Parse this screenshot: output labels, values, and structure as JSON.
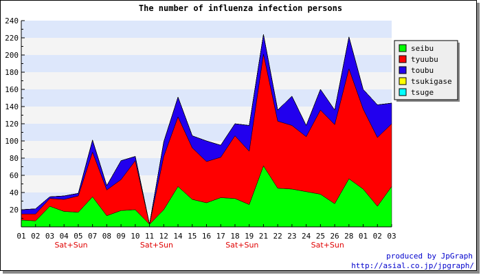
{
  "chart_data": {
    "type": "area",
    "stacked": true,
    "title": "The number of influenza infection persons",
    "xlabel": "",
    "ylabel": "",
    "ylim": [
      0,
      240
    ],
    "yticks": [
      0,
      20,
      40,
      60,
      80,
      100,
      120,
      140,
      160,
      180,
      200,
      220,
      240
    ],
    "ytick_labels": [
      "",
      "20",
      "40",
      "60",
      "80",
      "100",
      "120",
      "140",
      "160",
      "180",
      "200",
      "220",
      "240"
    ],
    "grid": "horizontal bands",
    "legend_position": "right",
    "categories": [
      "01",
      "02",
      "03",
      "04",
      "05",
      "07",
      "08",
      "09",
      "10",
      "11",
      "12",
      "14",
      "15",
      "16",
      "17",
      "18",
      "19",
      "21",
      "22",
      "23",
      "24",
      "25",
      "26",
      "28",
      "01",
      "02",
      "03"
    ],
    "weekend_labels": [
      {
        "after_index": 3,
        "text": "Sat+Sun"
      },
      {
        "after_index": 9,
        "text": "Sat+Sun"
      },
      {
        "after_index": 15,
        "text": "Sat+Sun"
      },
      {
        "after_index": 21,
        "text": "Sat+Sun"
      }
    ],
    "series": [
      {
        "name": "seibu",
        "color": "#00ff00",
        "values": [
          8,
          7,
          24,
          18,
          17,
          35,
          13,
          19,
          20,
          3,
          20,
          47,
          32,
          28,
          34,
          33,
          26,
          71,
          45,
          44,
          41,
          38,
          27,
          56,
          44,
          24,
          47
        ]
      },
      {
        "name": "tyuubu",
        "color": "#ff0000",
        "values": [
          7,
          8,
          9,
          14,
          19,
          52,
          30,
          36,
          57,
          0,
          62,
          81,
          60,
          48,
          47,
          73,
          62,
          130,
          78,
          74,
          64,
          98,
          92,
          128,
          93,
          80,
          73
        ]
      },
      {
        "name": "toubu",
        "color": "#2200ee",
        "values": [
          5,
          6,
          2,
          4,
          3,
          14,
          5,
          22,
          5,
          0,
          17,
          23,
          14,
          24,
          14,
          14,
          30,
          23,
          13,
          34,
          13,
          24,
          17,
          37,
          23,
          38,
          24
        ]
      },
      {
        "name": "tsukigase",
        "color": "#ffff00",
        "values": [
          0,
          0,
          0,
          0,
          0,
          0,
          0,
          0,
          0,
          0,
          0,
          0,
          0,
          0,
          0,
          0,
          0,
          0,
          0,
          0,
          0,
          0,
          0,
          0,
          0,
          0,
          0
        ]
      },
      {
        "name": "tsuge",
        "color": "#00ffff",
        "values": [
          0,
          0,
          0,
          0,
          0,
          0,
          0,
          0,
          0,
          0,
          0,
          0,
          0,
          0,
          0,
          0,
          0,
          0,
          0,
          0,
          0,
          0,
          0,
          0,
          0,
          0,
          0
        ]
      }
    ]
  },
  "credits": {
    "line1": "produced by JpGraph",
    "line2": "http://asial.co.jp/jpgraph/"
  }
}
